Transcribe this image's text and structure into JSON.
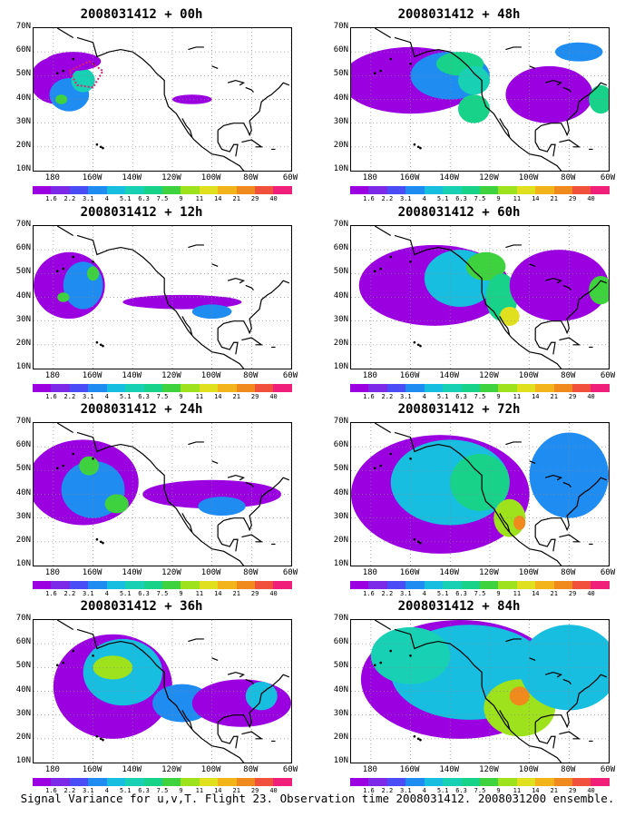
{
  "caption": "Signal Variance for u,v,T. Flight 23. Observation time 2008031412. 2008031200 ensemble.",
  "y_axis_labels": [
    "70N",
    "60N",
    "50N",
    "40N",
    "30N",
    "20N",
    "10N"
  ],
  "x_axis_labels": [
    "180",
    "160W",
    "140W",
    "120W",
    "100W",
    "80W",
    "60W"
  ],
  "colorbar": {
    "levels": [
      "1.6",
      "2.2",
      "3.1",
      "4",
      "5.1",
      "6.3",
      "7.5",
      "9",
      "11",
      "14",
      "21",
      "29",
      "40"
    ],
    "colors": [
      "#9a00e0",
      "#7d2ae8",
      "#4a4cf5",
      "#1f8cf2",
      "#18bee0",
      "#18d0b4",
      "#18d28a",
      "#3ed23e",
      "#9ee21e",
      "#e0e01e",
      "#f2b41a",
      "#f08a1c",
      "#f0503c",
      "#f0207a"
    ]
  },
  "panels": [
    {
      "title": "2008031412 + 00h",
      "lead_hours": 0
    },
    {
      "title": "2008031412 + 48h",
      "lead_hours": 48
    },
    {
      "title": "2008031412 + 12h",
      "lead_hours": 12
    },
    {
      "title": "2008031412 + 60h",
      "lead_hours": 60
    },
    {
      "title": "2008031412 + 24h",
      "lead_hours": 24
    },
    {
      "title": "2008031412 + 72h",
      "lead_hours": 72
    },
    {
      "title": "2008031412 + 36h",
      "lead_hours": 36
    },
    {
      "title": "2008031412 + 84h",
      "lead_hours": 84
    }
  ]
}
